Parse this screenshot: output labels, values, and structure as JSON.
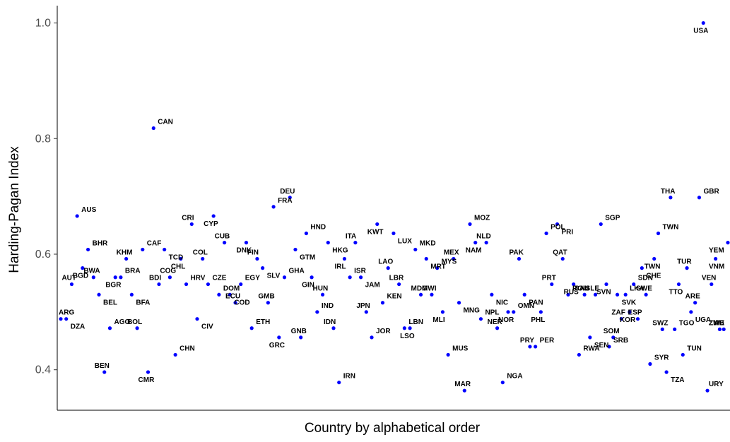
{
  "colors": {
    "point": "#0000ff",
    "axis": "#000000",
    "label": "#000000"
  },
  "chart_data": {
    "type": "scatter",
    "xlabel": "Country by alphabetical order",
    "ylabel": "Harding-Pagan Index",
    "ylim": [
      0.33,
      1.03
    ],
    "yticks": [
      0.4,
      0.6,
      0.8,
      1.0
    ],
    "ytick_labels": [
      "0.4",
      "0.6",
      "0.8",
      "1.0"
    ],
    "xlim": [
      0,
      101
    ],
    "grid": false,
    "points": [
      {
        "x": 1,
        "y": 0.488,
        "label": "ARG"
      },
      {
        "x": 2,
        "y": 0.488,
        "label": "DZA"
      },
      {
        "x": 3,
        "y": 0.548,
        "label": "AUT"
      },
      {
        "x": 4,
        "y": 0.666,
        "label": "AUS"
      },
      {
        "x": 5,
        "y": 0.576,
        "label": "BGD"
      },
      {
        "x": 6,
        "y": 0.608,
        "label": "BHR"
      },
      {
        "x": 7,
        "y": 0.56,
        "label": "BWA"
      },
      {
        "x": 8,
        "y": 0.53,
        "label": "BEL"
      },
      {
        "x": 9,
        "y": 0.396,
        "label": "BEN"
      },
      {
        "x": 10,
        "y": 0.472,
        "label": "AGO"
      },
      {
        "x": 11,
        "y": 0.56,
        "label": "BGR"
      },
      {
        "x": 12,
        "y": 0.56,
        "label": "BRA"
      },
      {
        "x": 13,
        "y": 0.592,
        "label": "KHM"
      },
      {
        "x": 14,
        "y": 0.53,
        "label": "BFA"
      },
      {
        "x": 15,
        "y": 0.472,
        "label": "BOL"
      },
      {
        "x": 16,
        "y": 0.608,
        "label": "CAF"
      },
      {
        "x": 17,
        "y": 0.396,
        "label": "CMR"
      },
      {
        "x": 18,
        "y": 0.818,
        "label": "CAN"
      },
      {
        "x": 19,
        "y": 0.548,
        "label": "BDI"
      },
      {
        "x": 20,
        "y": 0.608,
        "label": "TCD"
      },
      {
        "x": 21,
        "y": 0.56,
        "label": "COG"
      },
      {
        "x": 22,
        "y": 0.426,
        "label": "CHN"
      },
      {
        "x": 23,
        "y": 0.592,
        "label": "CHL"
      },
      {
        "x": 24,
        "y": 0.548,
        "label": "HRV"
      },
      {
        "x": 25,
        "y": 0.652,
        "label": "CRI"
      },
      {
        "x": 26,
        "y": 0.488,
        "label": "CIV"
      },
      {
        "x": 27,
        "y": 0.592,
        "label": "COL"
      },
      {
        "x": 28,
        "y": 0.548,
        "label": "CZE"
      },
      {
        "x": 29,
        "y": 0.666,
        "label": "CYP"
      },
      {
        "x": 30,
        "y": 0.53,
        "label": "DOM"
      },
      {
        "x": 31,
        "y": 0.62,
        "label": "CUB"
      },
      {
        "x": 32,
        "y": 0.53,
        "label": "COD"
      },
      {
        "x": 33,
        "y": 0.516,
        "label": "ECU"
      },
      {
        "x": 34,
        "y": 0.548,
        "label": "EGY"
      },
      {
        "x": 35,
        "y": 0.62,
        "label": "DNK"
      },
      {
        "x": 36,
        "y": 0.472,
        "label": "ETH"
      },
      {
        "x": 37,
        "y": 0.592,
        "label": "FIN"
      },
      {
        "x": 38,
        "y": 0.576,
        "label": "SLV"
      },
      {
        "x": 39,
        "y": 0.516,
        "label": "GMB"
      },
      {
        "x": 40,
        "y": 0.682,
        "label": "FRA"
      },
      {
        "x": 41,
        "y": 0.456,
        "label": "GRC"
      },
      {
        "x": 42,
        "y": 0.56,
        "label": "GHA"
      },
      {
        "x": 43,
        "y": 0.698,
        "label": "DEU"
      },
      {
        "x": 44,
        "y": 0.608,
        "label": "GTM"
      },
      {
        "x": 45,
        "y": 0.456,
        "label": "GNB"
      },
      {
        "x": 46,
        "y": 0.636,
        "label": "HND"
      },
      {
        "x": 47,
        "y": 0.56,
        "label": "GIN"
      },
      {
        "x": 48,
        "y": 0.5,
        "label": "IND"
      },
      {
        "x": 49,
        "y": 0.53,
        "label": "HUN"
      },
      {
        "x": 50,
        "y": 0.62,
        "label": "HKG"
      },
      {
        "x": 51,
        "y": 0.472,
        "label": "IDN"
      },
      {
        "x": 52,
        "y": 0.378,
        "label": "IRN"
      },
      {
        "x": 53,
        "y": 0.592,
        "label": "IRL"
      },
      {
        "x": 54,
        "y": 0.56,
        "label": "ISR"
      },
      {
        "x": 55,
        "y": 0.62,
        "label": "ITA"
      },
      {
        "x": 56,
        "y": 0.56,
        "label": "JAM"
      },
      {
        "x": 57,
        "y": 0.5,
        "label": "JPN"
      },
      {
        "x": 58,
        "y": 0.456,
        "label": "JOR"
      },
      {
        "x": 59,
        "y": 0.652,
        "label": "KWT"
      },
      {
        "x": 60,
        "y": 0.516,
        "label": "KEN"
      },
      {
        "x": 61,
        "y": 0.576,
        "label": "LAO"
      },
      {
        "x": 62,
        "y": 0.636,
        "label": "LUX"
      },
      {
        "x": 63,
        "y": 0.548,
        "label": "LBR"
      },
      {
        "x": 64,
        "y": 0.472,
        "label": "LBN"
      },
      {
        "x": 65,
        "y": 0.472,
        "label": "LSO"
      },
      {
        "x": 66,
        "y": 0.608,
        "label": "MKD"
      },
      {
        "x": 67,
        "y": 0.53,
        "label": "MDG"
      },
      {
        "x": 68,
        "y": 0.592,
        "label": "MRT"
      },
      {
        "x": 69,
        "y": 0.53,
        "label": "MWI"
      },
      {
        "x": 70,
        "y": 0.576,
        "label": "MYS"
      },
      {
        "x": 71,
        "y": 0.5,
        "label": "MLI"
      },
      {
        "x": 72,
        "y": 0.426,
        "label": "MUS"
      },
      {
        "x": 73,
        "y": 0.592,
        "label": "MEX"
      },
      {
        "x": 74,
        "y": 0.516,
        "label": "MNG"
      },
      {
        "x": 75,
        "y": 0.364,
        "label": "MAR"
      },
      {
        "x": 76,
        "y": 0.652,
        "label": "MOZ"
      },
      {
        "x": 77,
        "y": 0.62,
        "label": "NAM"
      },
      {
        "x": 78,
        "y": 0.488,
        "label": "NPL"
      },
      {
        "x": 79,
        "y": 0.62,
        "label": "NLD"
      },
      {
        "x": 80,
        "y": 0.53,
        "label": "NIC"
      },
      {
        "x": 81,
        "y": 0.472,
        "label": "NER"
      },
      {
        "x": 82,
        "y": 0.378,
        "label": "NGA"
      },
      {
        "x": 83,
        "y": 0.5,
        "label": "NOR"
      },
      {
        "x": 84,
        "y": 0.5,
        "label": "OMN"
      },
      {
        "x": 85,
        "y": 0.592,
        "label": "PAK"
      },
      {
        "x": 86,
        "y": 0.53,
        "label": "PAN"
      },
      {
        "x": 87,
        "y": 0.44,
        "label": "PRY"
      },
      {
        "x": 88,
        "y": 0.44,
        "label": "PER"
      },
      {
        "x": 89,
        "y": 0.5,
        "label": "PHL"
      },
      {
        "x": 90,
        "y": 0.636,
        "label": "POL"
      },
      {
        "x": 91,
        "y": 0.548,
        "label": "PRT"
      },
      {
        "x": 92,
        "y": 0.652,
        "label": "PRI"
      },
      {
        "x": 93,
        "y": 0.592,
        "label": "QAT"
      },
      {
        "x": 94,
        "y": 0.53,
        "label": "ROU"
      },
      {
        "x": 95,
        "y": 0.548,
        "label": "RUS"
      },
      {
        "x": 96,
        "y": 0.426,
        "label": "RWA"
      },
      {
        "x": 97,
        "y": 0.53,
        "label": "SAU"
      },
      {
        "x": 98,
        "y": 0.456,
        "label": "SEN"
      },
      {
        "x": 99,
        "y": 0.53,
        "label": "SLE"
      },
      {
        "x": 100,
        "y": 0.652,
        "label": "SGP"
      },
      {
        "x": 101,
        "y": 0.548,
        "label": "SVN"
      }
    ],
    "right_points": [
      {
        "x": 0,
        "y": 0.44,
        "label": "SRB"
      },
      {
        "x": 1,
        "y": 0.456,
        "label": "SOM"
      },
      {
        "x": 2,
        "y": 0.53,
        "label": "SVK"
      },
      {
        "x": 3,
        "y": 0.488,
        "label": "ZAF"
      },
      {
        "x": 4,
        "y": 0.53,
        "label": "LKA"
      },
      {
        "x": 5,
        "y": 0.5,
        "label": "KOR"
      },
      {
        "x": 6,
        "y": 0.548,
        "label": "SDN"
      },
      {
        "x": 7,
        "y": 0.488,
        "label": "ESP"
      },
      {
        "x": 8,
        "y": 0.576,
        "label": "CHE"
      },
      {
        "x": 9,
        "y": 0.53,
        "label": "SWE"
      },
      {
        "x": 10,
        "y": 0.41,
        "label": "SYR"
      },
      {
        "x": 11,
        "y": 0.592,
        "label": "TWN"
      },
      {
        "x": 12,
        "y": 0.636,
        "label": "TWN2"
      },
      {
        "x": 13,
        "y": 0.47,
        "label": "SWZ"
      },
      {
        "x": 14,
        "y": 0.396,
        "label": "TZA"
      },
      {
        "x": 15,
        "y": 0.698,
        "label": "THA"
      },
      {
        "x": 16,
        "y": 0.47,
        "label": "TGO"
      },
      {
        "x": 17,
        "y": 0.548,
        "label": "TTO"
      },
      {
        "x": 18,
        "y": 0.426,
        "label": "TUN"
      },
      {
        "x": 19,
        "y": 0.576,
        "label": "TUR"
      },
      {
        "x": 20,
        "y": 0.5,
        "label": "UGA"
      },
      {
        "x": 21,
        "y": 0.516,
        "label": "ARE"
      },
      {
        "x": 22,
        "y": 0.698,
        "label": "GBR"
      },
      {
        "x": 23,
        "y": 1.0,
        "label": "USA"
      },
      {
        "x": 24,
        "y": 0.364,
        "label": "URY"
      },
      {
        "x": 25,
        "y": 0.548,
        "label": "VEN"
      },
      {
        "x": 26,
        "y": 0.592,
        "label": "VNM"
      },
      {
        "x": 27,
        "y": 0.47,
        "label": "ZWE"
      },
      {
        "x": 28,
        "y": 0.47,
        "label": "ZMB"
      },
      {
        "x": 29,
        "y": 0.62,
        "label": "YEM"
      }
    ]
  }
}
